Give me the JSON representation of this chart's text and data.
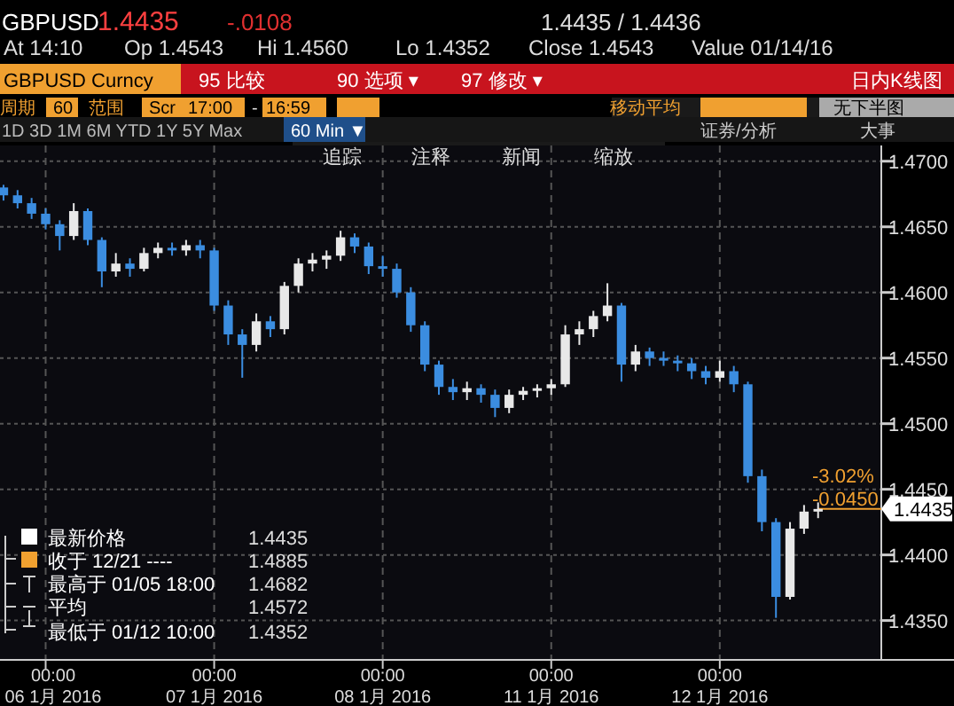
{
  "chart_data": {
    "type": "candlestick",
    "title": "GBPUSD",
    "categories": [
      null,
      null,
      null,
      "00:00\n06 1月 2016",
      null,
      null,
      null,
      null,
      null,
      null,
      null,
      null,
      null,
      null,
      null,
      "00:00\n07 1月 2016",
      null,
      null,
      null,
      null,
      null,
      null,
      null,
      null,
      null,
      null,
      null,
      "00:00\n08 1月 2016",
      null,
      null,
      null,
      null,
      null,
      null,
      null,
      null,
      null,
      null,
      null,
      "00:00\n11 1月 2016",
      null,
      null,
      null,
      null,
      null,
      null,
      null,
      null,
      null,
      null,
      null,
      "00:00\n12 1月 2016",
      null,
      null,
      null,
      null,
      null,
      null,
      null
    ],
    "ohlc": [
      [
        1.468,
        1.4682,
        1.467,
        1.4674
      ],
      [
        1.4674,
        1.4678,
        1.4664,
        1.4668
      ],
      [
        1.4668,
        1.4672,
        1.4656,
        1.466
      ],
      [
        1.466,
        1.4664,
        1.4648,
        1.4652
      ],
      [
        1.4652,
        1.4655,
        1.4632,
        1.4643
      ],
      [
        1.4643,
        1.4668,
        1.464,
        1.4662
      ],
      [
        1.4662,
        1.4664,
        1.4636,
        1.464
      ],
      [
        1.464,
        1.4642,
        1.4604,
        1.4616
      ],
      [
        1.4616,
        1.463,
        1.4612,
        1.4622
      ],
      [
        1.4622,
        1.4626,
        1.4612,
        1.4618
      ],
      [
        1.4618,
        1.4634,
        1.4616,
        1.463
      ],
      [
        1.463,
        1.4638,
        1.4626,
        1.4634
      ],
      [
        1.4634,
        1.4638,
        1.4628,
        1.4632
      ],
      [
        1.4632,
        1.464,
        1.4628,
        1.4636
      ],
      [
        1.4636,
        1.464,
        1.4626,
        1.4632
      ],
      [
        1.4632,
        1.4634,
        1.4586,
        1.459
      ],
      [
        1.459,
        1.4594,
        1.456,
        1.4568
      ],
      [
        1.4568,
        1.4572,
        1.4535,
        1.456
      ],
      [
        1.456,
        1.4584,
        1.4555,
        1.4578
      ],
      [
        1.4578,
        1.4582,
        1.4566,
        1.4572
      ],
      [
        1.4572,
        1.4608,
        1.4568,
        1.4605
      ],
      [
        1.4605,
        1.4626,
        1.46,
        1.4622
      ],
      [
        1.4622,
        1.463,
        1.4616,
        1.4625
      ],
      [
        1.4625,
        1.4632,
        1.4618,
        1.4628
      ],
      [
        1.4628,
        1.4647,
        1.4624,
        1.4642
      ],
      [
        1.4642,
        1.4645,
        1.463,
        1.4635
      ],
      [
        1.4635,
        1.4638,
        1.4614,
        1.462
      ],
      [
        1.462,
        1.4628,
        1.4612,
        1.4618
      ],
      [
        1.4618,
        1.4622,
        1.4596,
        1.46
      ],
      [
        1.46,
        1.4604,
        1.457,
        1.4575
      ],
      [
        1.4575,
        1.4578,
        1.454,
        1.4545
      ],
      [
        1.4545,
        1.4548,
        1.4522,
        1.4528
      ],
      [
        1.4528,
        1.4534,
        1.4518,
        1.4524
      ],
      [
        1.4524,
        1.4532,
        1.4518,
        1.4527
      ],
      [
        1.4527,
        1.453,
        1.4516,
        1.4522
      ],
      [
        1.4522,
        1.4526,
        1.4505,
        1.4512
      ],
      [
        1.4512,
        1.4526,
        1.4508,
        1.4522
      ],
      [
        1.4522,
        1.4528,
        1.4518,
        1.4525
      ],
      [
        1.4525,
        1.453,
        1.452,
        1.4527
      ],
      [
        1.4527,
        1.4534,
        1.4522,
        1.453
      ],
      [
        1.453,
        1.4575,
        1.4528,
        1.4568
      ],
      [
        1.4568,
        1.4578,
        1.456,
        1.4572
      ],
      [
        1.4572,
        1.4586,
        1.4566,
        1.4582
      ],
      [
        1.4582,
        1.4607,
        1.4578,
        1.459
      ],
      [
        1.459,
        1.4592,
        1.4532,
        1.4545
      ],
      [
        1.4545,
        1.456,
        1.454,
        1.4555
      ],
      [
        1.4555,
        1.4558,
        1.4544,
        1.455
      ],
      [
        1.455,
        1.4555,
        1.4544,
        1.4548
      ],
      [
        1.4548,
        1.4552,
        1.454,
        1.4546
      ],
      [
        1.4546,
        1.455,
        1.4534,
        1.454
      ],
      [
        1.454,
        1.4544,
        1.453,
        1.4535
      ],
      [
        1.4535,
        1.4548,
        1.4532,
        1.454
      ],
      [
        1.454,
        1.4544,
        1.4524,
        1.453
      ],
      [
        1.453,
        1.4532,
        1.4455,
        1.446
      ],
      [
        1.446,
        1.4465,
        1.4418,
        1.4425
      ],
      [
        1.4425,
        1.4428,
        1.4352,
        1.4368
      ],
      [
        1.4368,
        1.4425,
        1.4366,
        1.442
      ],
      [
        1.442,
        1.4438,
        1.4416,
        1.4433
      ],
      [
        1.4433,
        1.444,
        1.4428,
        1.4435
      ]
    ],
    "colors": [
      "#3b8de0",
      "#3b8de0",
      "#3b8de0",
      "#3b8de0",
      "#3b8de0",
      "#e8e8e8",
      "#3b8de0",
      "#3b8de0",
      "#e8e8e8",
      "#3b8de0",
      "#e8e8e8",
      "#e8e8e8",
      "#3b8de0",
      "#e8e8e8",
      "#3b8de0",
      "#3b8de0",
      "#3b8de0",
      "#3b8de0",
      "#e8e8e8",
      "#3b8de0",
      "#e8e8e8",
      "#e8e8e8",
      "#e8e8e8",
      "#e8e8e8",
      "#e8e8e8",
      "#3b8de0",
      "#3b8de0",
      "#3b8de0",
      "#3b8de0",
      "#3b8de0",
      "#3b8de0",
      "#3b8de0",
      "#3b8de0",
      "#e8e8e8",
      "#3b8de0",
      "#3b8de0",
      "#e8e8e8",
      "#e8e8e8",
      "#e8e8e8",
      "#e8e8e8",
      "#e8e8e8",
      "#e8e8e8",
      "#e8e8e8",
      "#e8e8e8",
      "#3b8de0",
      "#e8e8e8",
      "#3b8de0",
      "#3b8de0",
      "#3b8de0",
      "#3b8de0",
      "#3b8de0",
      "#e8e8e8",
      "#3b8de0",
      "#3b8de0",
      "#3b8de0",
      "#3b8de0",
      "#e8e8e8",
      "#e8e8e8",
      "#e8e8e8"
    ],
    "ylim": [
      1.432,
      1.4712
    ],
    "yticks": [
      {
        "value": 1.435,
        "label": "1.4350"
      },
      {
        "value": 1.44,
        "label": "1.4400"
      },
      {
        "value": 1.445,
        "label": "1.4450"
      },
      {
        "value": 1.45,
        "label": "1.4500"
      },
      {
        "value": 1.455,
        "label": "1.4550"
      },
      {
        "value": 1.46,
        "label": "1.4600"
      },
      {
        "value": 1.465,
        "label": "1.4650"
      },
      {
        "value": 1.47,
        "label": "1.4700"
      }
    ],
    "grid": true,
    "ref_lines": [
      {
        "axis": "y",
        "value": 1.4435,
        "label": "1.4435",
        "color": "#f0a030"
      }
    ],
    "annotations": [
      "1.4435",
      "-.0108",
      "1.4435 / 1.4436",
      "At 14:10",
      "Op 1.4543",
      "Hi 1.4560",
      "Lo 1.4352",
      "Close 1.4543",
      "Value 01/14/16",
      "GBPUSD Curncy",
      "95 比较",
      "90 选项 ▾",
      "97 修改 ▾",
      "日内K线图",
      "周期",
      "60",
      "范围",
      "Scr",
      "17:00",
      "-",
      "16:59",
      "移动平均",
      "无下半图",
      "1D  3D  1M  6M  YTD  1Y  5Y  Max",
      "60 Min ▼",
      "证券/分析",
      "大事",
      "追踪",
      "注释",
      "新闻",
      "缩放",
      "-3.02%",
      "-0.0450",
      "最新价格",
      "1.4435",
      "收于 12/21 ----",
      "1.4885",
      "最高于 01/05 18:00",
      "1.4682",
      "平均",
      "1.4572",
      "最低于 01/12 10:00",
      "1.4352"
    ]
  }
}
